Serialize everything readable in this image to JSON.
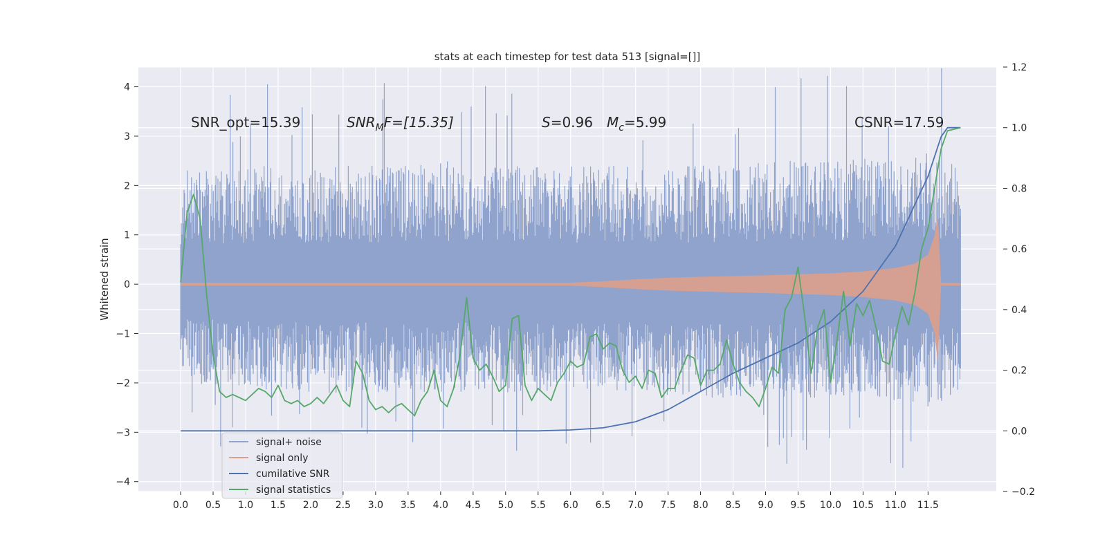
{
  "chart_data": {
    "type": "line",
    "title": "stats at each timestep for test data 513 [signal=[]]",
    "xlabel": "",
    "ylabel": "Whitened strain",
    "xlim": [
      -0.65,
      12.55
    ],
    "ylim": [
      -4.2,
      4.4
    ],
    "y2lim": [
      -0.2,
      1.2
    ],
    "x_ticks": [
      0.0,
      0.5,
      1.0,
      1.5,
      2.0,
      2.5,
      3.0,
      3.5,
      4.0,
      4.5,
      5.0,
      5.5,
      6.0,
      6.5,
      7.0,
      7.5,
      8.0,
      8.5,
      9.0,
      9.5,
      10.0,
      10.5,
      11.0,
      11.5
    ],
    "x_tick_labels": [
      "0.0",
      "0.5",
      "1.0",
      "1.5",
      "2.0",
      "2.5",
      "3.0",
      "3.5",
      "4.0",
      "4.5",
      "5.0",
      "5.5",
      "6.0",
      "6.5",
      "7.0",
      "7.5",
      "8.0",
      "8.5",
      "9.0",
      "9.5",
      "10.0",
      "10.5",
      "11.0",
      "11.5"
    ],
    "y_ticks": [
      -4,
      -3,
      -2,
      -1,
      0,
      1,
      2,
      3,
      4
    ],
    "y_tick_labels": [
      "−4",
      "−3",
      "−2",
      "−1",
      "0",
      "1",
      "2",
      "3",
      "4"
    ],
    "y2_ticks": [
      -0.2,
      0.0,
      0.2,
      0.4,
      0.6,
      0.8,
      1.0,
      1.2
    ],
    "y2_tick_labels": [
      "−0.2",
      "0.0",
      "0.2",
      "0.4",
      "0.6",
      "0.8",
      "1.0",
      "1.2"
    ],
    "grid": true,
    "legend_position": "lower-left",
    "annotations": {
      "snr_opt": "SNR_opt=15.39",
      "snr_mf_main": "SNR",
      "snr_mf_sub": "M",
      "snr_mf_rest": "F=[15.35]",
      "s_main": "S",
      "s_rest": "=0.96",
      "mc_main": "M",
      "mc_sub": "c",
      "mc_rest": "=5.99",
      "csnr": "CSNR=17.59"
    },
    "series": [
      {
        "name": "signal+ noise",
        "axis": "left",
        "color": "#8fa3cc",
        "envelope": {
          "x": [
            0.0,
            1.0,
            2.0,
            3.0,
            4.0,
            5.0,
            6.0,
            7.0,
            8.0,
            9.0,
            10.0,
            11.0,
            11.6,
            12.0
          ],
          "upper": [
            2.3,
            2.4,
            2.4,
            2.4,
            2.5,
            2.4,
            2.4,
            2.4,
            2.4,
            2.5,
            2.5,
            2.6,
            2.7,
            2.4
          ],
          "lower": [
            -2.0,
            -2.1,
            -2.2,
            -2.2,
            -2.2,
            -2.2,
            -2.2,
            -2.2,
            -2.3,
            -2.3,
            -2.3,
            -2.4,
            -2.5,
            -2.3
          ]
        }
      },
      {
        "name": "signal only",
        "axis": "left",
        "color": "#dd9f8c",
        "envelope": {
          "x": [
            0.0,
            6.0,
            6.5,
            7.0,
            7.5,
            8.0,
            9.0,
            10.0,
            10.5,
            11.0,
            11.3,
            11.5,
            11.6,
            11.65,
            11.7,
            12.0
          ],
          "upper": [
            0.03,
            0.03,
            0.06,
            0.1,
            0.13,
            0.15,
            0.18,
            0.22,
            0.26,
            0.33,
            0.42,
            0.6,
            1.0,
            1.4,
            0.03,
            0.03
          ],
          "lower": [
            -0.03,
            -0.03,
            -0.06,
            -0.1,
            -0.13,
            -0.15,
            -0.18,
            -0.22,
            -0.26,
            -0.33,
            -0.42,
            -0.6,
            -1.0,
            -1.6,
            -0.03,
            -0.03
          ]
        }
      },
      {
        "name": "cumilative SNR",
        "axis": "right",
        "color": "#4c72b0",
        "x": [
          0.0,
          5.5,
          6.0,
          6.5,
          7.0,
          7.5,
          8.0,
          8.5,
          9.0,
          9.5,
          10.0,
          10.5,
          11.0,
          11.5,
          11.7,
          11.8,
          12.0
        ],
        "y": [
          0.0,
          0.0,
          0.003,
          0.01,
          0.03,
          0.07,
          0.13,
          0.19,
          0.24,
          0.29,
          0.36,
          0.46,
          0.61,
          0.84,
          0.97,
          1.0,
          1.0
        ]
      },
      {
        "name": "signal statistics",
        "axis": "right",
        "color": "#55a868",
        "x": [
          0.0,
          0.1,
          0.2,
          0.3,
          0.4,
          0.5,
          0.6,
          0.7,
          0.8,
          0.9,
          1.0,
          1.1,
          1.2,
          1.3,
          1.4,
          1.5,
          1.6,
          1.7,
          1.8,
          1.9,
          2.0,
          2.1,
          2.2,
          2.3,
          2.4,
          2.5,
          2.6,
          2.7,
          2.8,
          2.9,
          3.0,
          3.1,
          3.2,
          3.3,
          3.4,
          3.5,
          3.6,
          3.7,
          3.8,
          3.9,
          4.0,
          4.1,
          4.2,
          4.3,
          4.4,
          4.5,
          4.6,
          4.7,
          4.8,
          4.9,
          5.0,
          5.1,
          5.2,
          5.3,
          5.4,
          5.5,
          5.6,
          5.7,
          5.8,
          5.9,
          6.0,
          6.1,
          6.2,
          6.3,
          6.4,
          6.5,
          6.6,
          6.7,
          6.8,
          6.9,
          7.0,
          7.1,
          7.2,
          7.3,
          7.4,
          7.5,
          7.6,
          7.7,
          7.8,
          7.9,
          8.0,
          8.1,
          8.2,
          8.3,
          8.4,
          8.5,
          8.6,
          8.7,
          8.8,
          8.9,
          9.0,
          9.1,
          9.2,
          9.3,
          9.4,
          9.5,
          9.6,
          9.7,
          9.8,
          9.9,
          10.0,
          10.1,
          10.2,
          10.3,
          10.4,
          10.5,
          10.6,
          10.7,
          10.8,
          10.9,
          11.0,
          11.1,
          11.2,
          11.3,
          11.4,
          11.5,
          11.6,
          11.7,
          11.8,
          12.0
        ],
        "y": [
          0.49,
          0.72,
          0.78,
          0.7,
          0.45,
          0.25,
          0.13,
          0.11,
          0.12,
          0.11,
          0.1,
          0.12,
          0.14,
          0.13,
          0.11,
          0.15,
          0.1,
          0.09,
          0.1,
          0.08,
          0.09,
          0.11,
          0.09,
          0.12,
          0.15,
          0.1,
          0.08,
          0.23,
          0.19,
          0.1,
          0.07,
          0.08,
          0.06,
          0.08,
          0.09,
          0.07,
          0.05,
          0.1,
          0.13,
          0.2,
          0.1,
          0.08,
          0.14,
          0.25,
          0.44,
          0.24,
          0.2,
          0.22,
          0.18,
          0.13,
          0.15,
          0.37,
          0.38,
          0.15,
          0.1,
          0.14,
          0.12,
          0.1,
          0.16,
          0.19,
          0.23,
          0.21,
          0.22,
          0.31,
          0.32,
          0.27,
          0.29,
          0.28,
          0.2,
          0.16,
          0.18,
          0.14,
          0.2,
          0.19,
          0.11,
          0.14,
          0.14,
          0.2,
          0.25,
          0.24,
          0.15,
          0.2,
          0.2,
          0.22,
          0.3,
          0.22,
          0.16,
          0.13,
          0.11,
          0.08,
          0.14,
          0.21,
          0.19,
          0.4,
          0.44,
          0.54,
          0.38,
          0.19,
          0.34,
          0.4,
          0.16,
          0.3,
          0.46,
          0.28,
          0.42,
          0.38,
          0.43,
          0.34,
          0.23,
          0.22,
          0.32,
          0.41,
          0.35,
          0.46,
          0.6,
          0.67,
          0.8,
          0.93,
          0.99,
          1.0
        ]
      }
    ]
  }
}
